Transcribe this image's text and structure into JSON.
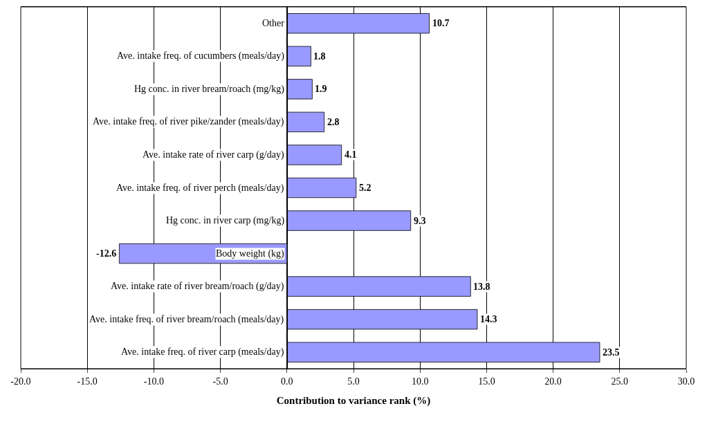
{
  "chart_data": {
    "type": "bar",
    "orientation": "horizontal",
    "xlabel": "Contribution to variance rank (%)",
    "categories": [
      "Other",
      "Ave. intake freq. of cucumbers (meals/day)",
      "Hg conc. in river bream/roach (mg/kg)",
      "Ave. intake freq. of river pike/zander (meals/day)",
      "Ave. intake rate of river carp (g/day)",
      "Ave. intake freq. of river perch (meals/day)",
      "Hg conc. in river carp (mg/kg)",
      "Body weight (kg)",
      "Ave. intake rate of river bream/roach (g/day)",
      "Ave. intake freq. of river bream/roach (meals/day)",
      "Ave. intake freq. of river carp (meals/day)"
    ],
    "values": [
      10.7,
      1.8,
      1.9,
      2.8,
      4.1,
      5.2,
      9.3,
      -12.6,
      13.8,
      14.3,
      23.5
    ],
    "color": "#9999ff",
    "data_labels": true,
    "grid": "x",
    "legend": false,
    "xlim": [
      -20,
      30
    ],
    "xticks": [
      {
        "value": -20,
        "label": "-20.0"
      },
      {
        "value": -15,
        "label": "-15.0"
      },
      {
        "value": -10,
        "label": "-10.0"
      },
      {
        "value": -5,
        "label": "-5.0"
      },
      {
        "value": 0,
        "label": "0.0"
      },
      {
        "value": 5,
        "label": "5.0"
      },
      {
        "value": 10,
        "label": "10.0"
      },
      {
        "value": 15,
        "label": "15.0"
      },
      {
        "value": 20,
        "label": "20.0"
      },
      {
        "value": 25,
        "label": "25.0"
      },
      {
        "value": 30,
        "label": "30.0"
      }
    ]
  }
}
